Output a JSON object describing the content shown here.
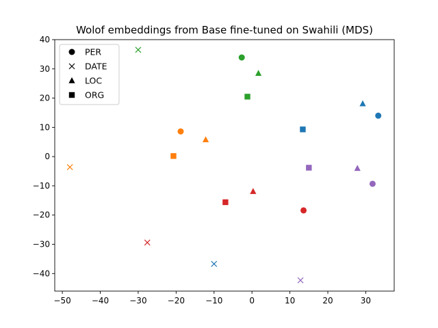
{
  "chart_data": {
    "type": "scatter",
    "title": "Wolof embeddings from Base fine-tuned on Swahili (MDS)",
    "xlabel": "",
    "ylabel": "",
    "xlim": [
      -52,
      37.5
    ],
    "ylim": [
      -46,
      40
    ],
    "xticks": [
      -50,
      -40,
      -30,
      -20,
      -10,
      0,
      10,
      20,
      30
    ],
    "yticks": [
      -40,
      -30,
      -20,
      -10,
      0,
      10,
      20,
      30,
      40
    ],
    "grid": false,
    "legend_position": "top-left",
    "legend": [
      {
        "label": "PER",
        "marker": "circle"
      },
      {
        "label": "DATE",
        "marker": "x"
      },
      {
        "label": "LOC",
        "marker": "triangle"
      },
      {
        "label": "ORG",
        "marker": "square"
      }
    ],
    "colors": {
      "blue": "#1f77b4",
      "orange": "#ff7f0e",
      "green": "#2ca02c",
      "red": "#d62728",
      "purple": "#9467bd"
    },
    "points": [
      {
        "x": 33.3,
        "y": 14.0,
        "marker": "circle",
        "color": "blue"
      },
      {
        "x": -10.0,
        "y": -36.7,
        "marker": "x",
        "color": "blue"
      },
      {
        "x": 29.2,
        "y": 18.1,
        "marker": "triangle",
        "color": "blue"
      },
      {
        "x": 13.4,
        "y": 9.3,
        "marker": "square",
        "color": "blue"
      },
      {
        "x": -18.8,
        "y": 8.6,
        "marker": "circle",
        "color": "orange"
      },
      {
        "x": -48.0,
        "y": -3.6,
        "marker": "x",
        "color": "orange"
      },
      {
        "x": -12.2,
        "y": 5.8,
        "marker": "triangle",
        "color": "orange"
      },
      {
        "x": -20.7,
        "y": 0.2,
        "marker": "square",
        "color": "orange"
      },
      {
        "x": -2.7,
        "y": 33.9,
        "marker": "circle",
        "color": "green"
      },
      {
        "x": -30.0,
        "y": 36.5,
        "marker": "x",
        "color": "green"
      },
      {
        "x": 1.7,
        "y": 28.5,
        "marker": "triangle",
        "color": "green"
      },
      {
        "x": -1.2,
        "y": 20.5,
        "marker": "square",
        "color": "green"
      },
      {
        "x": 13.6,
        "y": -18.4,
        "marker": "circle",
        "color": "red"
      },
      {
        "x": -27.6,
        "y": -29.4,
        "marker": "x",
        "color": "red"
      },
      {
        "x": 0.3,
        "y": -11.9,
        "marker": "triangle",
        "color": "red"
      },
      {
        "x": -7.0,
        "y": -15.6,
        "marker": "square",
        "color": "red"
      },
      {
        "x": 31.8,
        "y": -9.3,
        "marker": "circle",
        "color": "purple"
      },
      {
        "x": 12.8,
        "y": -42.3,
        "marker": "x",
        "color": "purple"
      },
      {
        "x": 27.8,
        "y": -4.0,
        "marker": "triangle",
        "color": "purple"
      },
      {
        "x": 15.0,
        "y": -3.8,
        "marker": "square",
        "color": "purple"
      }
    ]
  }
}
